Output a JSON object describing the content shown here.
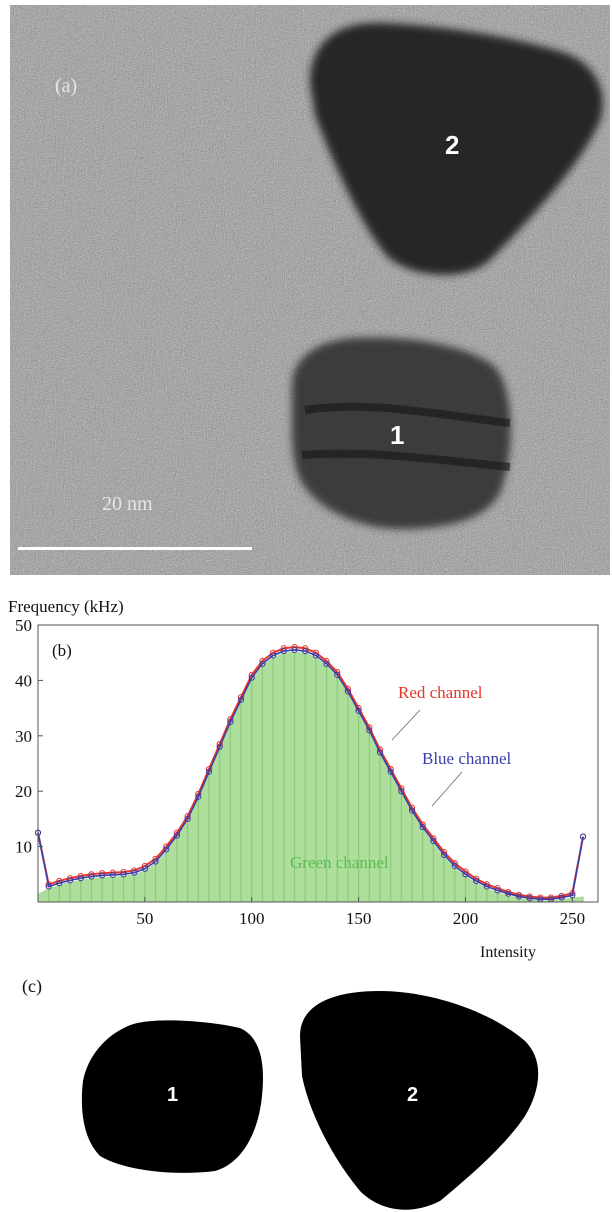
{
  "panel_a": {
    "label": "(a)",
    "scale_bar_label": "20 nm",
    "particle_labels": [
      "1",
      "2"
    ]
  },
  "panel_c": {
    "label": "(c)",
    "particle_labels": [
      "1",
      "2"
    ]
  },
  "chart_data": {
    "type": "line",
    "panel_label": "(b)",
    "title": "",
    "ylabel": "Frequency (kHz)",
    "xlabel": "Intensity",
    "xlim": [
      0,
      262
    ],
    "ylim": [
      0,
      50
    ],
    "x_ticks": [
      50,
      100,
      150,
      200,
      250
    ],
    "y_ticks": [
      10,
      20,
      30,
      40,
      50
    ],
    "grid": false,
    "annotations": [
      "Red channel",
      "Blue channel",
      "Green channel"
    ],
    "x": [
      0,
      5,
      10,
      15,
      20,
      25,
      30,
      35,
      40,
      45,
      50,
      55,
      60,
      65,
      70,
      75,
      80,
      85,
      90,
      95,
      100,
      105,
      110,
      115,
      120,
      125,
      130,
      135,
      140,
      145,
      150,
      155,
      160,
      165,
      170,
      175,
      180,
      185,
      190,
      195,
      200,
      205,
      210,
      215,
      220,
      225,
      230,
      235,
      240,
      245,
      250,
      255
    ],
    "series": [
      {
        "name": "Red channel",
        "color": "#e8352a",
        "values": [
          12.5,
          3.2,
          3.8,
          4.3,
          4.7,
          5.0,
          5.2,
          5.3,
          5.4,
          5.7,
          6.5,
          7.8,
          10.0,
          12.5,
          15.5,
          19.5,
          24.0,
          28.5,
          33.0,
          37.0,
          41.0,
          43.5,
          45.0,
          45.8,
          46.0,
          45.8,
          45.0,
          43.5,
          41.5,
          38.5,
          35.0,
          31.5,
          27.5,
          24.0,
          20.5,
          17.0,
          14.0,
          11.5,
          9.0,
          7.0,
          5.5,
          4.2,
          3.2,
          2.5,
          1.8,
          1.3,
          1.0,
          0.8,
          0.8,
          1.1,
          1.6,
          11.8
        ]
      },
      {
        "name": "Blue channel",
        "color": "#3a3fa8",
        "values": [
          12.5,
          2.8,
          3.4,
          3.9,
          4.3,
          4.6,
          4.8,
          4.9,
          5.0,
          5.3,
          6.0,
          7.3,
          9.5,
          12.0,
          15.0,
          19.0,
          23.5,
          28.0,
          32.5,
          36.5,
          40.5,
          43.0,
          44.5,
          45.3,
          45.5,
          45.3,
          44.5,
          43.0,
          41.0,
          38.0,
          34.5,
          31.0,
          27.0,
          23.5,
          20.0,
          16.5,
          13.5,
          11.0,
          8.5,
          6.5,
          5.0,
          3.8,
          2.8,
          2.1,
          1.5,
          1.0,
          0.7,
          0.5,
          0.5,
          0.8,
          1.2,
          11.8
        ]
      },
      {
        "name": "Green channel",
        "color": "#9fd88a",
        "values": [
          1.5,
          2.5,
          3.1,
          3.6,
          4.0,
          4.3,
          4.5,
          4.6,
          4.7,
          5.0,
          5.7,
          7.0,
          9.2,
          11.7,
          14.7,
          18.7,
          23.2,
          27.7,
          32.2,
          36.2,
          40.2,
          42.7,
          44.2,
          45.0,
          45.2,
          45.0,
          44.2,
          42.7,
          40.7,
          37.7,
          34.2,
          30.7,
          26.7,
          23.2,
          19.7,
          16.2,
          13.2,
          10.7,
          8.2,
          6.2,
          4.7,
          3.5,
          2.5,
          1.8,
          1.2,
          0.8,
          0.5,
          0.3,
          0.3,
          0.5,
          0.8,
          1.0
        ]
      }
    ]
  }
}
